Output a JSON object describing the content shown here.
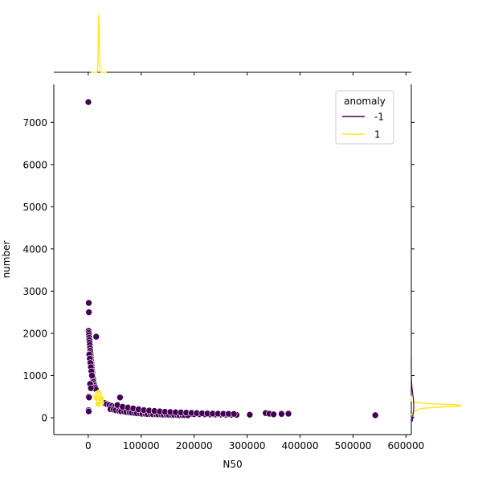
{
  "chart_data": {
    "type": "scatter",
    "title": "",
    "xlabel": "N50",
    "ylabel": "number",
    "xlim": [
      -65000,
      610000
    ],
    "ylim": [
      -400,
      7900
    ],
    "x_ticks": [
      0,
      100000,
      200000,
      300000,
      400000,
      500000,
      600000
    ],
    "x_tick_labels": [
      "0",
      "100000",
      "200000",
      "300000",
      "400000",
      "500000",
      "600000"
    ],
    "y_ticks": [
      0,
      1000,
      2000,
      3000,
      4000,
      5000,
      6000,
      7000
    ],
    "y_tick_labels": [
      "0",
      "1000",
      "2000",
      "3000",
      "4000",
      "5000",
      "6000",
      "7000"
    ],
    "grid": false,
    "legend": {
      "title": "anomaly",
      "placement": "top-right",
      "entries": [
        {
          "label": "-1",
          "color": "#440154"
        },
        {
          "label": "1",
          "color": "#fde725"
        }
      ]
    },
    "series": [
      {
        "name": "-1",
        "color": "#440154",
        "points": [
          [
            200,
            7480
          ],
          [
            1000,
            2720
          ],
          [
            1200,
            2500
          ],
          [
            800,
            2060
          ],
          [
            1100,
            2010
          ],
          [
            1500,
            1960
          ],
          [
            1800,
            1900
          ],
          [
            2200,
            1840
          ],
          [
            2600,
            1780
          ],
          [
            3000,
            1720
          ],
          [
            3400,
            1650
          ],
          [
            3800,
            1590
          ],
          [
            4200,
            1530
          ],
          [
            4600,
            1470
          ],
          [
            5000,
            1410
          ],
          [
            5500,
            1350
          ],
          [
            6000,
            1290
          ],
          [
            6500,
            1230
          ],
          [
            7000,
            1170
          ],
          [
            7500,
            1110
          ],
          [
            8000,
            1060
          ],
          [
            8500,
            1000
          ],
          [
            9000,
            950
          ],
          [
            9500,
            900
          ],
          [
            10000,
            850
          ],
          [
            11000,
            800
          ],
          [
            12000,
            760
          ],
          [
            13000,
            720
          ],
          [
            14000,
            680
          ],
          [
            15000,
            1920
          ],
          [
            2000,
            1500
          ],
          [
            3000,
            1400
          ],
          [
            4000,
            1300
          ],
          [
            5000,
            1200
          ],
          [
            6000,
            1100
          ],
          [
            7000,
            1000
          ],
          [
            3500,
            800
          ],
          [
            5000,
            700
          ],
          [
            800,
            500
          ],
          [
            1500,
            480
          ],
          [
            600,
            180
          ],
          [
            900,
            150
          ],
          [
            60000,
            480
          ],
          [
            25000,
            420
          ],
          [
            30000,
            350
          ],
          [
            35000,
            320
          ],
          [
            40000,
            300
          ],
          [
            45000,
            280
          ],
          [
            50000,
            260
          ],
          [
            55000,
            240
          ],
          [
            60000,
            220
          ],
          [
            65000,
            210
          ],
          [
            70000,
            200
          ],
          [
            75000,
            190
          ],
          [
            80000,
            180
          ],
          [
            85000,
            170
          ],
          [
            90000,
            160
          ],
          [
            95000,
            150
          ],
          [
            100000,
            140
          ],
          [
            105000,
            135
          ],
          [
            110000,
            130
          ],
          [
            115000,
            125
          ],
          [
            120000,
            120
          ],
          [
            125000,
            118
          ],
          [
            130000,
            115
          ],
          [
            135000,
            112
          ],
          [
            140000,
            110
          ],
          [
            145000,
            108
          ],
          [
            150000,
            105
          ],
          [
            155000,
            102
          ],
          [
            160000,
            100
          ],
          [
            165000,
            98
          ],
          [
            170000,
            96
          ],
          [
            175000,
            94
          ],
          [
            180000,
            92
          ],
          [
            185000,
            90
          ],
          [
            190000,
            88
          ],
          [
            195000,
            86
          ],
          [
            200000,
            84
          ],
          [
            210000,
            82
          ],
          [
            220000,
            80
          ],
          [
            230000,
            78
          ],
          [
            240000,
            76
          ],
          [
            250000,
            74
          ],
          [
            260000,
            72
          ],
          [
            270000,
            70
          ],
          [
            280000,
            68
          ],
          [
            42000,
            200
          ],
          [
            48000,
            190
          ],
          [
            52000,
            175
          ],
          [
            58000,
            160
          ],
          [
            62000,
            150
          ],
          [
            68000,
            145
          ],
          [
            72000,
            135
          ],
          [
            78000,
            125
          ],
          [
            82000,
            120
          ],
          [
            88000,
            110
          ],
          [
            92000,
            105
          ],
          [
            98000,
            100
          ],
          [
            102000,
            95
          ],
          [
            108000,
            92
          ],
          [
            112000,
            88
          ],
          [
            118000,
            85
          ],
          [
            122000,
            82
          ],
          [
            128000,
            80
          ],
          [
            132000,
            78
          ],
          [
            138000,
            75
          ],
          [
            142000,
            73
          ],
          [
            148000,
            71
          ],
          [
            152000,
            70
          ],
          [
            158000,
            68
          ],
          [
            162000,
            66
          ],
          [
            168000,
            64
          ],
          [
            172000,
            62
          ],
          [
            178000,
            60
          ],
          [
            182000,
            60
          ],
          [
            188000,
            58
          ],
          [
            55000,
            300
          ],
          [
            65000,
            260
          ],
          [
            75000,
            240
          ],
          [
            85000,
            220
          ],
          [
            95000,
            200
          ],
          [
            105000,
            180
          ],
          [
            115000,
            170
          ],
          [
            125000,
            160
          ],
          [
            135000,
            150
          ],
          [
            145000,
            140
          ],
          [
            155000,
            135
          ],
          [
            165000,
            130
          ],
          [
            175000,
            125
          ],
          [
            185000,
            120
          ],
          [
            195000,
            115
          ],
          [
            205000,
            110
          ],
          [
            215000,
            105
          ],
          [
            225000,
            100
          ],
          [
            235000,
            98
          ],
          [
            245000,
            96
          ],
          [
            255000,
            94
          ],
          [
            265000,
            92
          ],
          [
            275000,
            90
          ],
          [
            305000,
            70
          ],
          [
            335000,
            110
          ],
          [
            342000,
            95
          ],
          [
            350000,
            80
          ],
          [
            365000,
            90
          ],
          [
            378000,
            95
          ],
          [
            542000,
            60
          ]
        ]
      },
      {
        "name": "1",
        "color": "#fde725",
        "points": [
          [
            14000,
            520
          ],
          [
            17000,
            560
          ],
          [
            20000,
            580
          ],
          [
            22000,
            500
          ],
          [
            18000,
            440
          ],
          [
            21000,
            400
          ],
          [
            23000,
            360
          ],
          [
            19000,
            330
          ],
          [
            16000,
            470
          ],
          [
            24000,
            450
          ]
        ]
      }
    ],
    "marginal_x_density": [
      {
        "name": "1",
        "color": "#fde725",
        "peak_at": 20000
      }
    ],
    "marginal_y_density": [
      {
        "name": "1",
        "color": "#fde725",
        "peak_at": 290
      },
      {
        "name": "-1",
        "color": "#440154",
        "peak_at": 290
      }
    ]
  }
}
